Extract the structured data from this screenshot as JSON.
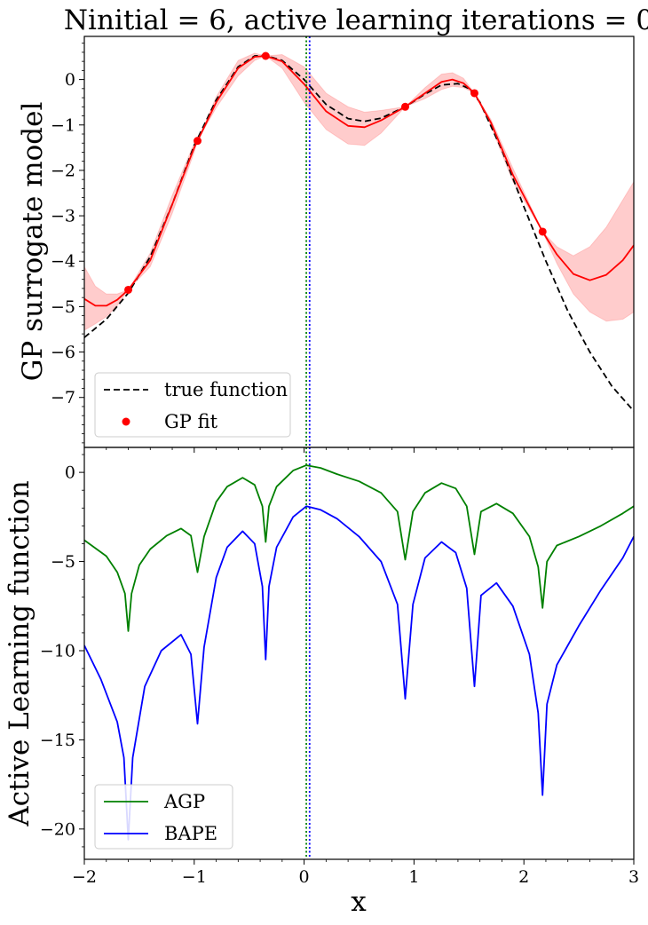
{
  "title": "Ninitial = 6, active learning iterations = 0",
  "xlabel": "x",
  "chart_data": [
    {
      "type": "line",
      "panel": "top",
      "ylabel": "GP surrogate model",
      "xlim": [
        -2,
        3
      ],
      "ylim": [
        -8.1,
        0.95
      ],
      "xticks": [
        -2,
        -1,
        0,
        1,
        2,
        3
      ],
      "yticks": [
        0,
        -1,
        -2,
        -3,
        -4,
        -5,
        -6,
        -7
      ],
      "ytick_labels": [
        "0",
        "−1",
        "−2",
        "−3",
        "−4",
        "−5",
        "−6",
        "−7"
      ],
      "vlines": [
        {
          "x": 0.02,
          "color": "#008000",
          "style": "dotted"
        },
        {
          "x": 0.05,
          "color": "#0000ff",
          "style": "dotted"
        }
      ],
      "series": [
        {
          "name": "true function",
          "style": "dashed",
          "color": "#000000",
          "x": [
            -2.0,
            -1.8,
            -1.6,
            -1.4,
            -1.2,
            -1.0,
            -0.8,
            -0.6,
            -0.45,
            -0.35,
            -0.2,
            0.0,
            0.2,
            0.4,
            0.55,
            0.7,
            0.92,
            1.1,
            1.25,
            1.4,
            1.5,
            1.6,
            1.8,
            2.0,
            2.2,
            2.4,
            2.6,
            2.8,
            3.0
          ],
          "y": [
            -5.68,
            -5.28,
            -4.7,
            -3.9,
            -2.75,
            -1.45,
            -0.45,
            0.28,
            0.52,
            0.53,
            0.42,
            0.0,
            -0.55,
            -0.86,
            -0.92,
            -0.85,
            -0.6,
            -0.32,
            -0.12,
            -0.09,
            -0.2,
            -0.5,
            -1.55,
            -2.8,
            -4.0,
            -5.1,
            -6.0,
            -6.75,
            -7.3
          ]
        },
        {
          "name": "GP mean",
          "style": "solid",
          "color": "#ff0000",
          "x": [
            -2.0,
            -1.9,
            -1.8,
            -1.7,
            -1.6,
            -1.4,
            -1.2,
            -1.0,
            -0.97,
            -0.8,
            -0.6,
            -0.45,
            -0.35,
            -0.2,
            0.0,
            0.2,
            0.4,
            0.55,
            0.7,
            0.92,
            1.1,
            1.25,
            1.35,
            1.45,
            1.55,
            1.7,
            1.9,
            2.17,
            2.3,
            2.45,
            2.6,
            2.75,
            2.9,
            3.0
          ],
          "y": [
            -4.83,
            -4.98,
            -4.98,
            -4.85,
            -4.63,
            -3.98,
            -2.75,
            -1.5,
            -1.35,
            -0.5,
            0.25,
            0.5,
            0.52,
            0.4,
            -0.1,
            -0.7,
            -1.02,
            -1.05,
            -0.9,
            -0.6,
            -0.3,
            -0.05,
            0.0,
            -0.08,
            -0.3,
            -0.95,
            -2.1,
            -3.35,
            -3.85,
            -4.28,
            -4.42,
            -4.3,
            -3.98,
            -3.65
          ]
        },
        {
          "name": "GP upper",
          "style": "band",
          "color": "#ff0000",
          "x": [
            -2.0,
            -1.9,
            -1.8,
            -1.7,
            -1.6,
            -1.4,
            -1.2,
            -1.0,
            -0.97,
            -0.8,
            -0.6,
            -0.45,
            -0.35,
            -0.2,
            0.0,
            0.2,
            0.4,
            0.55,
            0.7,
            0.92,
            1.1,
            1.25,
            1.35,
            1.45,
            1.55,
            1.7,
            1.9,
            2.17,
            2.3,
            2.45,
            2.6,
            2.75,
            2.9,
            3.0
          ],
          "y": [
            -4.12,
            -4.55,
            -4.72,
            -4.72,
            -4.63,
            -3.82,
            -2.55,
            -1.4,
            -1.35,
            -0.38,
            0.42,
            0.58,
            0.52,
            0.55,
            0.28,
            -0.3,
            -0.6,
            -0.72,
            -0.68,
            -0.6,
            -0.18,
            0.12,
            0.15,
            0.03,
            -0.3,
            -0.88,
            -1.95,
            -3.35,
            -3.68,
            -3.88,
            -3.68,
            -3.25,
            -2.65,
            -2.25
          ]
        },
        {
          "name": "GP lower",
          "style": "band",
          "color": "#ff0000",
          "x": [
            -2.0,
            -1.9,
            -1.8,
            -1.7,
            -1.6,
            -1.4,
            -1.2,
            -1.0,
            -0.97,
            -0.8,
            -0.6,
            -0.45,
            -0.35,
            -0.2,
            0.0,
            0.2,
            0.4,
            0.55,
            0.7,
            0.92,
            1.1,
            1.25,
            1.35,
            1.45,
            1.55,
            1.7,
            1.9,
            2.17,
            2.3,
            2.45,
            2.6,
            2.75,
            2.9,
            3.0
          ],
          "y": [
            -5.52,
            -5.38,
            -5.22,
            -4.98,
            -4.63,
            -4.12,
            -2.95,
            -1.6,
            -1.35,
            -0.62,
            0.08,
            0.42,
            0.52,
            0.25,
            -0.5,
            -1.1,
            -1.42,
            -1.45,
            -1.18,
            -0.6,
            -0.42,
            -0.22,
            -0.15,
            -0.18,
            -0.3,
            -1.02,
            -2.25,
            -3.35,
            -4.05,
            -4.72,
            -5.12,
            -5.32,
            -5.28,
            -5.12
          ]
        },
        {
          "name": "GP fit",
          "style": "points",
          "color": "#ff0000",
          "x": [
            -1.6,
            -0.97,
            -0.35,
            0.92,
            1.55,
            2.17
          ],
          "y": [
            -4.63,
            -1.35,
            0.52,
            -0.6,
            -0.3,
            -3.35
          ]
        }
      ],
      "legend": {
        "position": "lower-left",
        "entries": [
          "true function",
          "GP fit"
        ]
      }
    },
    {
      "type": "line",
      "panel": "bottom",
      "ylabel": "Active Learning function",
      "xlim": [
        -2,
        3
      ],
      "ylim": [
        -21.7,
        1.4
      ],
      "xticks": [
        -2,
        -1,
        0,
        1,
        2,
        3
      ],
      "xtick_labels": [
        "−2",
        "−1",
        "0",
        "1",
        "2",
        "3"
      ],
      "yticks": [
        0,
        -5,
        -10,
        -15,
        -20
      ],
      "ytick_labels": [
        "0",
        "−5",
        "−10",
        "−15",
        "−20"
      ],
      "vlines": [
        {
          "x": 0.02,
          "color": "#008000",
          "style": "dotted"
        },
        {
          "x": 0.05,
          "color": "#0000ff",
          "style": "dotted"
        }
      ],
      "series": [
        {
          "name": "AGP",
          "color": "#008000",
          "x": [
            -2.0,
            -1.8,
            -1.7,
            -1.63,
            -1.6,
            -1.57,
            -1.5,
            -1.4,
            -1.25,
            -1.12,
            -1.03,
            -0.97,
            -0.91,
            -0.8,
            -0.7,
            -0.56,
            -0.45,
            -0.38,
            -0.35,
            -0.32,
            -0.25,
            -0.1,
            0.02,
            0.15,
            0.3,
            0.5,
            0.7,
            0.85,
            0.92,
            0.99,
            1.1,
            1.25,
            1.38,
            1.48,
            1.55,
            1.61,
            1.75,
            1.9,
            2.05,
            2.13,
            2.17,
            2.21,
            2.3,
            2.5,
            2.7,
            2.9,
            3.0
          ],
          "y": [
            -3.8,
            -4.7,
            -5.6,
            -6.8,
            -8.9,
            -6.8,
            -5.2,
            -4.3,
            -3.55,
            -3.15,
            -3.55,
            -5.6,
            -3.6,
            -1.65,
            -0.8,
            -0.3,
            -0.7,
            -1.9,
            -3.9,
            -1.9,
            -0.8,
            0.1,
            0.4,
            0.25,
            -0.1,
            -0.5,
            -1.15,
            -2.2,
            -4.9,
            -2.2,
            -1.15,
            -0.6,
            -0.9,
            -1.9,
            -4.6,
            -2.2,
            -1.75,
            -2.3,
            -3.6,
            -5.3,
            -7.6,
            -5.0,
            -4.1,
            -3.6,
            -3.0,
            -2.3,
            -1.9
          ]
        },
        {
          "name": "BAPE",
          "color": "#0000ff",
          "x": [
            -2.0,
            -1.85,
            -1.7,
            -1.64,
            -1.6,
            -1.56,
            -1.45,
            -1.3,
            -1.12,
            -1.03,
            -0.97,
            -0.91,
            -0.8,
            -0.7,
            -0.56,
            -0.45,
            -0.38,
            -0.35,
            -0.32,
            -0.25,
            -0.1,
            0.02,
            0.15,
            0.3,
            0.5,
            0.7,
            0.85,
            0.92,
            0.99,
            1.1,
            1.25,
            1.38,
            1.48,
            1.55,
            1.61,
            1.75,
            1.9,
            2.05,
            2.13,
            2.17,
            2.21,
            2.3,
            2.5,
            2.7,
            2.9,
            3.0
          ],
          "y": [
            -9.7,
            -11.6,
            -14.0,
            -16.0,
            -20.6,
            -16.0,
            -12.0,
            -10.0,
            -9.1,
            -10.2,
            -14.1,
            -9.8,
            -5.9,
            -4.2,
            -3.3,
            -4.0,
            -6.4,
            -10.5,
            -6.4,
            -4.2,
            -2.5,
            -1.9,
            -2.1,
            -2.6,
            -3.6,
            -5.0,
            -7.4,
            -12.7,
            -7.4,
            -4.8,
            -3.9,
            -4.5,
            -6.5,
            -12.0,
            -6.9,
            -6.2,
            -7.5,
            -10.2,
            -13.5,
            -18.1,
            -13.0,
            -10.8,
            -8.6,
            -6.6,
            -4.8,
            -3.6
          ]
        }
      ],
      "legend": {
        "position": "lower-left",
        "entries": [
          "AGP",
          "BAPE"
        ]
      }
    }
  ]
}
